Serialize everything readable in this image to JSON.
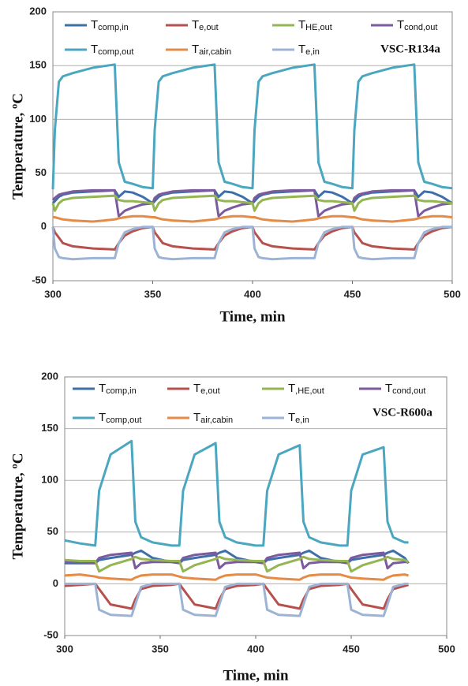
{
  "chart_data": [
    {
      "type": "line",
      "xlabel": "Time, min",
      "ylabel": "Temperature, ºC",
      "annotation": "VSC-R134a",
      "xlim": [
        300,
        500
      ],
      "xticks": [
        300,
        350,
        400,
        450,
        500
      ],
      "ylim": [
        -50,
        200
      ],
      "yticks": [
        -50,
        0,
        50,
        100,
        150,
        200
      ],
      "grid": "y",
      "x": [
        300,
        301,
        303,
        305,
        310,
        320,
        331,
        333,
        336,
        340,
        345,
        350,
        351,
        353,
        355,
        360,
        370,
        381,
        383,
        386,
        390,
        395,
        400,
        401,
        403,
        405,
        410,
        420,
        431,
        433,
        436,
        440,
        445,
        450,
        451,
        453,
        455,
        460,
        470,
        481,
        483,
        486,
        490,
        495,
        500
      ],
      "series": [
        {
          "name": "Tcomp,in",
          "color": "#3e6fa8",
          "values": [
            22,
            24,
            28,
            30,
            32,
            33,
            34,
            28,
            33,
            32,
            28,
            22,
            24,
            28,
            30,
            32,
            33,
            34,
            28,
            33,
            32,
            28,
            22,
            24,
            28,
            30,
            32,
            33,
            34,
            28,
            33,
            32,
            28,
            22,
            24,
            28,
            30,
            32,
            33,
            34,
            28,
            33,
            32,
            28,
            22
          ]
        },
        {
          "name": "Te,out",
          "color": "#b6514d",
          "values": [
            0,
            -5,
            -10,
            -15,
            -18,
            -20,
            -21,
            -15,
            -8,
            -4,
            -1,
            0,
            -5,
            -10,
            -15,
            -18,
            -20,
            -21,
            -15,
            -8,
            -4,
            -1,
            0,
            -5,
            -10,
            -15,
            -18,
            -20,
            -21,
            -15,
            -8,
            -4,
            -1,
            0,
            -5,
            -10,
            -15,
            -18,
            -20,
            -21,
            -15,
            -8,
            -4,
            -1,
            0
          ]
        },
        {
          "name": "THE,out",
          "color": "#93b552",
          "values": [
            22,
            15,
            22,
            25,
            27,
            28,
            29,
            25,
            24,
            24,
            23,
            22,
            15,
            22,
            25,
            27,
            28,
            29,
            25,
            24,
            24,
            23,
            22,
            15,
            22,
            25,
            27,
            28,
            29,
            25,
            24,
            24,
            23,
            22,
            15,
            22,
            25,
            27,
            28,
            29,
            25,
            24,
            24,
            23,
            22
          ]
        },
        {
          "name": "Tcond,out",
          "color": "#7b5a9e",
          "values": [
            25,
            27,
            30,
            31,
            33,
            34,
            34,
            10,
            15,
            18,
            21,
            22,
            27,
            30,
            31,
            33,
            34,
            34,
            10,
            15,
            18,
            21,
            22,
            27,
            30,
            31,
            33,
            34,
            34,
            10,
            15,
            18,
            21,
            22,
            27,
            30,
            31,
            33,
            34,
            34,
            10,
            15,
            18,
            21,
            22
          ]
        },
        {
          "name": "Tcomp,out",
          "color": "#4aa7bf",
          "values": [
            35,
            90,
            135,
            140,
            143,
            148,
            151,
            60,
            42,
            40,
            37,
            36,
            90,
            135,
            140,
            143,
            148,
            151,
            60,
            42,
            40,
            37,
            36,
            90,
            135,
            140,
            143,
            148,
            151,
            60,
            42,
            40,
            37,
            36,
            90,
            135,
            140,
            143,
            148,
            151,
            60,
            42,
            40,
            37,
            36
          ]
        },
        {
          "name": "Tair,cabin",
          "color": "#e58b45",
          "values": [
            9,
            9,
            8,
            7,
            6,
            5,
            7,
            8,
            9,
            10,
            10,
            9,
            9,
            8,
            7,
            6,
            5,
            7,
            8,
            9,
            10,
            10,
            9,
            9,
            8,
            7,
            6,
            5,
            7,
            8,
            9,
            10,
            10,
            9,
            9,
            8,
            7,
            6,
            5,
            7,
            8,
            9,
            10,
            10,
            9
          ]
        },
        {
          "name": "Te,in",
          "color": "#9db3d6",
          "values": [
            0,
            -20,
            -28,
            -29,
            -30,
            -29,
            -29,
            -15,
            -5,
            -2,
            0,
            0,
            -20,
            -28,
            -29,
            -30,
            -29,
            -29,
            -15,
            -5,
            -2,
            0,
            0,
            -20,
            -28,
            -29,
            -30,
            -29,
            -29,
            -15,
            -5,
            -2,
            0,
            0,
            -20,
            -28,
            -29,
            -30,
            -29,
            -29,
            -15,
            -5,
            -2,
            0,
            0
          ]
        }
      ]
    },
    {
      "type": "line",
      "xlabel": "Time, min",
      "ylabel": "Temperature, ºC",
      "annotation": "VSC-R600a",
      "xlim": [
        300,
        500
      ],
      "xticks": [
        300,
        350,
        400,
        450,
        500
      ],
      "ylim": [
        -50,
        200
      ],
      "yticks": [
        -50,
        0,
        50,
        100,
        150,
        200
      ],
      "grid": "y",
      "x": [
        300,
        308,
        316,
        318,
        324,
        335,
        337,
        340,
        346,
        356,
        360,
        362,
        368,
        379,
        381,
        384,
        390,
        400,
        404,
        406,
        412,
        423,
        425,
        428,
        434,
        444,
        448,
        450,
        456,
        467,
        469,
        472,
        478,
        480
      ],
      "series": [
        {
          "name": "Tcomp,in",
          "color": "#3e6fa8",
          "values": [
            20,
            20,
            20,
            23,
            25,
            28,
            30,
            32,
            25,
            21,
            20,
            23,
            25,
            28,
            30,
            32,
            25,
            21,
            20,
            23,
            25,
            28,
            30,
            32,
            25,
            21,
            20,
            23,
            25,
            28,
            30,
            32,
            25,
            20
          ]
        },
        {
          "name": "Te,out",
          "color": "#b6514d",
          "values": [
            -2,
            -1,
            0,
            -5,
            -20,
            -24,
            -15,
            -5,
            -2,
            -1,
            0,
            -5,
            -20,
            -24,
            -15,
            -5,
            -2,
            -1,
            0,
            -5,
            -20,
            -24,
            -15,
            -5,
            -2,
            -1,
            0,
            -5,
            -20,
            -24,
            -15,
            -5,
            -2,
            -1
          ]
        },
        {
          "name": "T,HE,out",
          "color": "#93b552",
          "values": [
            23,
            22,
            22,
            12,
            18,
            24,
            26,
            24,
            23,
            22,
            22,
            12,
            18,
            24,
            26,
            24,
            23,
            22,
            22,
            12,
            18,
            24,
            26,
            24,
            23,
            22,
            22,
            12,
            18,
            24,
            26,
            24,
            23,
            21
          ]
        },
        {
          "name": "Tcond,out",
          "color": "#7b5a9e",
          "values": [
            21,
            21,
            20,
            25,
            28,
            30,
            15,
            20,
            21,
            21,
            20,
            25,
            28,
            30,
            15,
            20,
            21,
            21,
            20,
            25,
            28,
            30,
            15,
            20,
            21,
            21,
            20,
            25,
            28,
            30,
            15,
            20,
            21,
            21
          ]
        },
        {
          "name": "Tcomp,out",
          "color": "#4aa7bf",
          "values": [
            42,
            39,
            37,
            90,
            125,
            138,
            60,
            45,
            40,
            37,
            37,
            90,
            125,
            136,
            60,
            45,
            40,
            37,
            37,
            90,
            125,
            134,
            60,
            45,
            40,
            37,
            37,
            90,
            125,
            132,
            60,
            45,
            40,
            40
          ]
        },
        {
          "name": "Tair,cabin",
          "color": "#e58b45",
          "values": [
            8,
            9,
            7,
            6,
            5,
            4,
            6,
            8,
            9,
            9,
            7,
            6,
            5,
            4,
            6,
            8,
            9,
            9,
            7,
            6,
            5,
            4,
            6,
            8,
            9,
            9,
            7,
            6,
            5,
            4,
            6,
            8,
            9,
            8
          ]
        },
        {
          "name": "Te,in",
          "color": "#9db3d6",
          "values": [
            0,
            0,
            0,
            -25,
            -30,
            -31,
            -20,
            -3,
            0,
            0,
            0,
            -25,
            -30,
            -31,
            -20,
            -3,
            0,
            0,
            0,
            -25,
            -30,
            -31,
            -20,
            -3,
            0,
            0,
            0,
            -25,
            -30,
            -31,
            -20,
            -3,
            0,
            0
          ]
        }
      ]
    }
  ]
}
